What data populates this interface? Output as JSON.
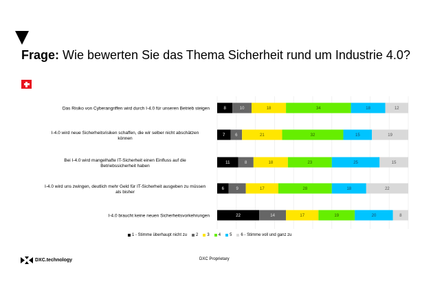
{
  "title": {
    "prefix": "Frage:",
    "text": " Wie bewerten Sie das Thema Sicherheit rund um Industrie 4.0?"
  },
  "flag_icon": "switzerland-flag-icon",
  "footer": {
    "logo_text": "DXC.technology",
    "proprietary": "DXC Proprietary"
  },
  "chart_data": {
    "type": "bar",
    "orientation": "horizontal",
    "stacked": true,
    "title": "Wie bewerten Sie das Thema Sicherheit rund um Industrie 4.0?",
    "xlabel": "",
    "ylabel": "",
    "xlim": [
      0,
      100
    ],
    "grid": true,
    "legend_position": "bottom",
    "categories": [
      "Das Risiko von Cyberangriffen wird durch I-4.0 für unseren Betrieb steigen",
      "I-4.0 wird neue Sicherheitsrisiken schaffen, die wir selber nicht abschätzen können",
      "Bei I-4.0 wird mangelhafte IT-Sicherheit einen Einfluss auf die Betriebssicherheit haben",
      "I-4.0 wird uns zwingen, deutlich mehr Geld für IT-Sicherheit ausgeben zu müssen als bisher",
      "I-4.0 braucht keine neuen Sicherheitsvorkehrungen"
    ],
    "series": [
      {
        "name": "1 - Stimme überhaupt nicht zu",
        "color": "#000000",
        "label_color": "#ffffff",
        "values": [
          8,
          7,
          11,
          6,
          22
        ]
      },
      {
        "name": "2",
        "color": "#666666",
        "label_color": "#e0e0e0",
        "values": [
          10,
          6,
          8,
          9,
          14
        ]
      },
      {
        "name": "3",
        "color": "#ffe600",
        "label_color": "#555500",
        "values": [
          18,
          21,
          18,
          17,
          17
        ]
      },
      {
        "name": "4",
        "color": "#66ee00",
        "label_color": "#2a5a00",
        "values": [
          34,
          32,
          23,
          28,
          19
        ]
      },
      {
        "name": "5",
        "color": "#00c4ff",
        "label_color": "#1a4a6a",
        "values": [
          18,
          15,
          25,
          18,
          20
        ]
      },
      {
        "name": "6 - Stimme voll und ganz zu",
        "color": "#d9d9d9",
        "label_color": "#555555",
        "values": [
          12,
          19,
          15,
          22,
          8
        ]
      }
    ]
  }
}
